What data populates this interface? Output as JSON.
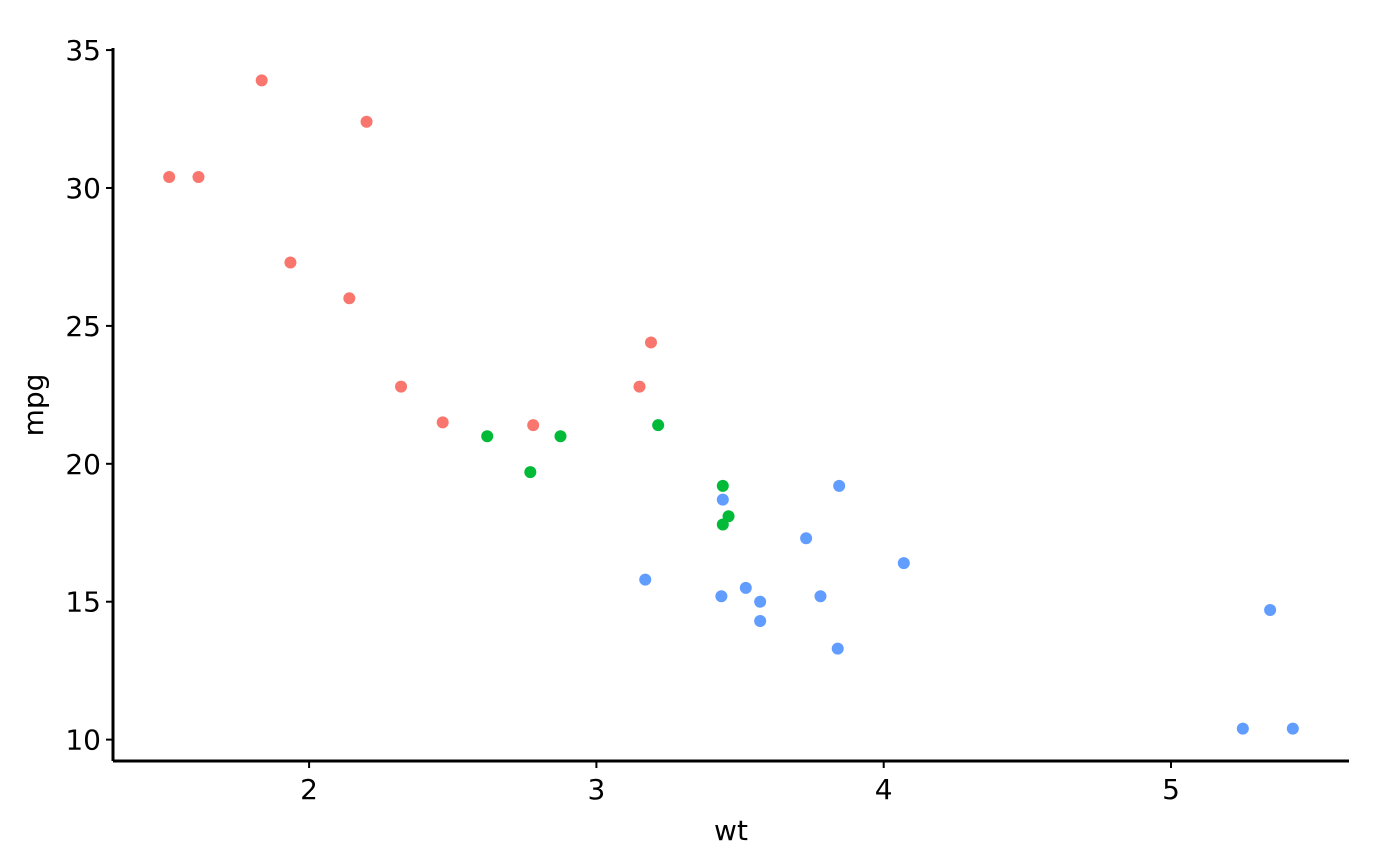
{
  "chart_data": {
    "type": "scatter",
    "x_label": "wt",
    "y_label": "mpg",
    "xlim": [
      1.31745,
      5.61955
    ],
    "ylim": [
      9.225,
      35.075
    ],
    "xticks": [
      2,
      3,
      4,
      5
    ],
    "yticks": [
      10,
      15,
      20,
      25,
      30,
      35
    ],
    "series": [
      {
        "color": "#F8766D",
        "x": [
          2.32,
          3.19,
          3.15,
          2.2,
          1.615,
          1.835,
          2.465,
          1.935,
          2.14,
          1.513,
          2.78
        ],
        "values": [
          22.8,
          24.4,
          22.8,
          32.4,
          30.4,
          33.9,
          21.5,
          27.3,
          26.0,
          30.4,
          21.4
        ]
      },
      {
        "color": "#00BA38",
        "x": [
          2.62,
          2.875,
          3.215,
          3.46,
          3.44,
          3.44,
          2.77
        ],
        "values": [
          21.0,
          21.0,
          21.4,
          18.1,
          19.2,
          17.8,
          19.7
        ]
      },
      {
        "color": "#619CFF",
        "x": [
          3.44,
          3.57,
          4.07,
          3.73,
          3.78,
          5.25,
          5.424,
          5.345,
          3.52,
          3.435,
          3.84,
          3.845,
          3.17,
          3.57
        ],
        "values": [
          18.7,
          14.3,
          16.4,
          17.3,
          15.2,
          10.4,
          10.4,
          14.7,
          15.5,
          15.2,
          13.3,
          19.2,
          15.8,
          15.0
        ]
      }
    ]
  }
}
